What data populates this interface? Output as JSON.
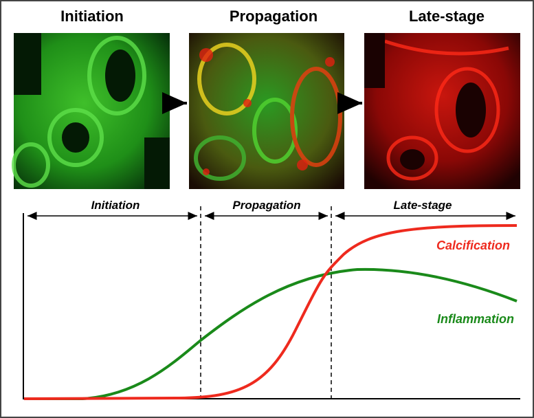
{
  "panels": [
    {
      "title": "Initiation"
    },
    {
      "title": "Propagation"
    },
    {
      "title": "Late-stage"
    }
  ],
  "phases": [
    {
      "label": "Initiation"
    },
    {
      "label": "Propagation"
    },
    {
      "label": "Late-stage"
    }
  ],
  "curves": [
    {
      "label": "Calcification"
    },
    {
      "label": "Inflammation"
    }
  ]
}
